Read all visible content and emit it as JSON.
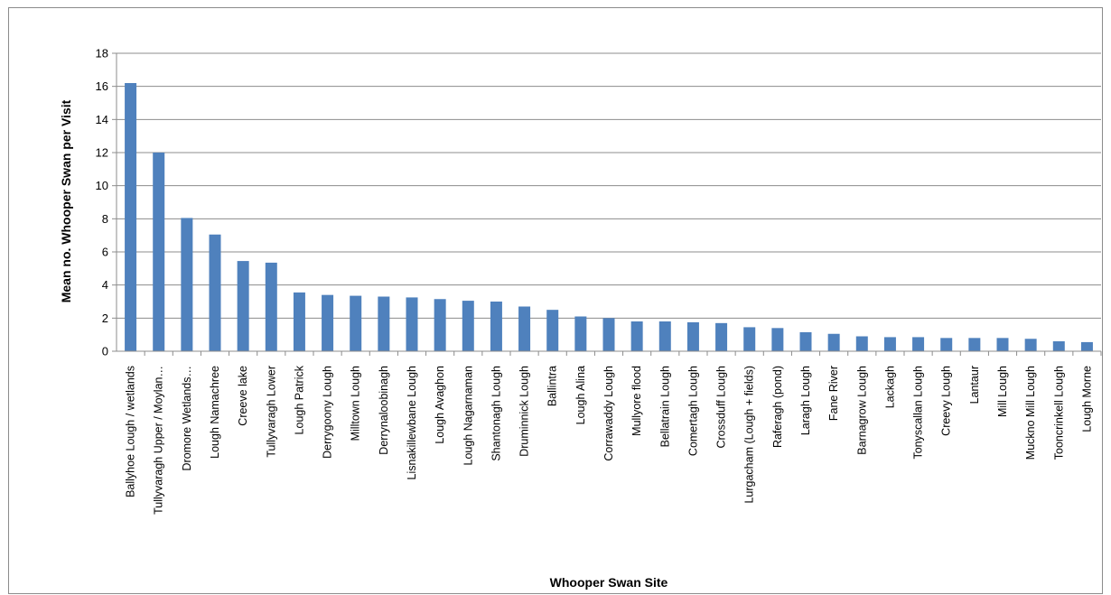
{
  "chart_data": {
    "type": "bar",
    "title": "",
    "xlabel": "Whooper Swan Site",
    "ylabel": "Mean no. Whooper Swan per Visit",
    "ylim": [
      0,
      18
    ],
    "yticks": [
      0,
      2,
      4,
      6,
      8,
      10,
      12,
      14,
      16,
      18
    ],
    "grid": true,
    "legend": "none",
    "bar_color": "#4f81bd",
    "categories": [
      "Ballyhoe Lough / wetlands",
      "Tullyvaragh Upper / Moylan…",
      "Dromore Wetlands…",
      "Lough Namachree",
      "Creeve lake",
      "Tullyvaragh Lower",
      "Lough Patrick",
      "Derrygoony Lough",
      "Milltown Lough",
      "Derrynaloobinagh",
      "Lisnakillewbane Lough",
      "Lough Avaghon",
      "Lough Nagarnaman",
      "Shantonagh Lough",
      "Druminnick Lough",
      "Ballintra",
      "Lough Alina",
      "Corrawaddy Lough",
      "Mullyore flood",
      "Bellatrain Lough",
      "Comertagh Lough",
      "Crossduff Lough",
      "Lurgacham (Lough + fields)",
      "Raferagh (pond)",
      "Laragh Lough",
      "Fane River",
      "Barnagrow Lough",
      "Lackagh",
      "Tonyscallan Lough",
      "Creevy Lough",
      "Lantaur",
      "Mill Lough",
      "Muckno Mill Lough",
      "Tooncrinkell Lough",
      "Lough Morne"
    ],
    "values": [
      16.2,
      12.0,
      8.05,
      7.05,
      5.45,
      5.35,
      3.55,
      3.4,
      3.35,
      3.3,
      3.25,
      3.15,
      3.05,
      3.0,
      2.7,
      2.5,
      2.1,
      2.0,
      1.8,
      1.8,
      1.75,
      1.7,
      1.45,
      1.4,
      1.15,
      1.05,
      0.9,
      0.85,
      0.85,
      0.8,
      0.8,
      0.8,
      0.75,
      0.6,
      0.55
    ]
  }
}
